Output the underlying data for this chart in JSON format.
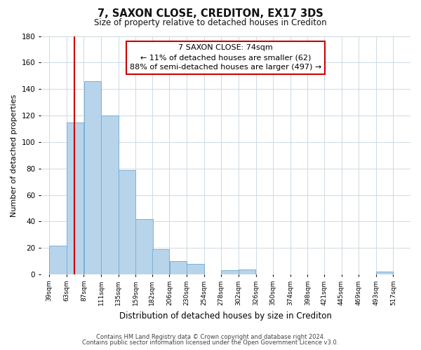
{
  "title": "7, SAXON CLOSE, CREDITON, EX17 3DS",
  "subtitle": "Size of property relative to detached houses in Crediton",
  "xlabel": "Distribution of detached houses by size in Crediton",
  "ylabel": "Number of detached properties",
  "bar_color": "#b8d4ea",
  "bar_edge_color": "#7aafd4",
  "vline_color": "#cc0000",
  "vline_x": 74,
  "annotation_title": "7 SAXON CLOSE: 74sqm",
  "annotation_line1": "← 11% of detached houses are smaller (62)",
  "annotation_line2": "88% of semi-detached houses are larger (497) →",
  "annotation_box_edge": "#cc0000",
  "bins_left": [
    39,
    63,
    87,
    111,
    135,
    159,
    182,
    206,
    230,
    254,
    278,
    302,
    326,
    350,
    374,
    398,
    421,
    445,
    469,
    493
  ],
  "bin_width": 24,
  "values": [
    22,
    115,
    146,
    120,
    79,
    42,
    19,
    10,
    8,
    0,
    3,
    4,
    0,
    0,
    0,
    0,
    0,
    0,
    0,
    2
  ],
  "xlim_left": 27,
  "xlim_right": 541,
  "ylim_top": 180,
  "yticks": [
    0,
    20,
    40,
    60,
    80,
    100,
    120,
    140,
    160,
    180
  ],
  "xtick_labels": [
    "39sqm",
    "63sqm",
    "87sqm",
    "111sqm",
    "135sqm",
    "159sqm",
    "182sqm",
    "206sqm",
    "230sqm",
    "254sqm",
    "278sqm",
    "302sqm",
    "326sqm",
    "350sqm",
    "374sqm",
    "398sqm",
    "421sqm",
    "445sqm",
    "469sqm",
    "493sqm",
    "517sqm"
  ],
  "xtick_positions": [
    39,
    63,
    87,
    111,
    135,
    159,
    182,
    206,
    230,
    254,
    278,
    302,
    326,
    350,
    374,
    398,
    421,
    445,
    469,
    493,
    517
  ],
  "footer1": "Contains HM Land Registry data © Crown copyright and database right 2024.",
  "footer2": "Contains public sector information licensed under the Open Government Licence v3.0.",
  "background_color": "#ffffff",
  "grid_color": "#cdd9e5"
}
